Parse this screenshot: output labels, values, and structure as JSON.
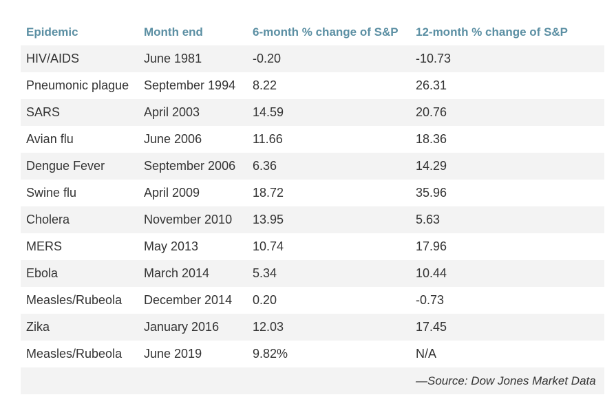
{
  "table": {
    "headers": [
      "Epidemic",
      "Month end",
      "6-month % change of S&P",
      "12-month % change of S&P"
    ],
    "rows": [
      [
        "HIV/AIDS",
        "June 1981",
        "-0.20",
        "-10.73"
      ],
      [
        "Pneumonic plague",
        "September 1994",
        "8.22",
        "26.31"
      ],
      [
        "SARS",
        "April 2003",
        "14.59",
        "20.76"
      ],
      [
        "Avian flu",
        "June 2006",
        "11.66",
        "18.36"
      ],
      [
        "Dengue Fever",
        "September 2006",
        "6.36",
        "14.29"
      ],
      [
        "Swine flu",
        "April 2009",
        "18.72",
        "35.96"
      ],
      [
        "Cholera",
        "November 2010",
        "13.95",
        "5.63"
      ],
      [
        "MERS",
        "May 2013",
        "10.74",
        "17.96"
      ],
      [
        "Ebola",
        "March 2014",
        "5.34",
        "10.44"
      ],
      [
        "Measles/Rubeola",
        "December 2014",
        "0.20",
        "-0.73"
      ],
      [
        "Zika",
        "January 2016",
        "12.03",
        "17.45"
      ],
      [
        "Measles/Rubeola",
        "June 2019",
        "9.82%",
        "N/A"
      ]
    ],
    "source": "—Source: Dow Jones Market Data"
  },
  "colors": {
    "header_text": "#5b8fa3",
    "body_text": "#333333",
    "stripe": "#f3f3f3"
  }
}
